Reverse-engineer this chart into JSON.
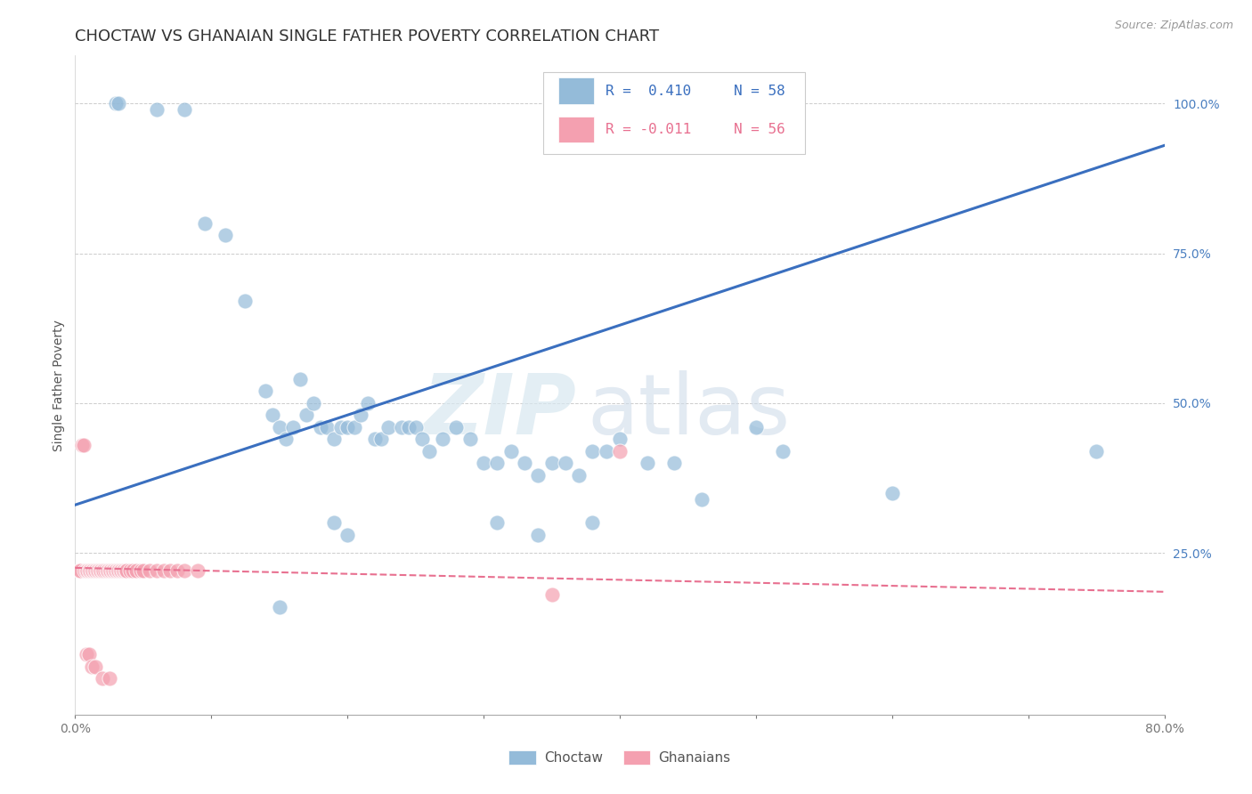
{
  "title": "CHOCTAW VS GHANAIAN SINGLE FATHER POVERTY CORRELATION CHART",
  "source": "Source: ZipAtlas.com",
  "ylabel": "Single Father Poverty",
  "xlim": [
    0.0,
    0.8
  ],
  "ylim": [
    -0.02,
    1.08
  ],
  "xticks": [
    0.0,
    0.1,
    0.2,
    0.3,
    0.4,
    0.5,
    0.6,
    0.7,
    0.8
  ],
  "xticklabels": [
    "0.0%",
    "",
    "",
    "",
    "",
    "",
    "",
    "",
    "80.0%"
  ],
  "yticks_right": [
    0.0,
    0.25,
    0.5,
    0.75,
    1.0
  ],
  "yticklabels_right": [
    "",
    "25.0%",
    "50.0%",
    "75.0%",
    "100.0%"
  ],
  "legend_blue_R": "R =  0.410",
  "legend_blue_N": "N = 58",
  "legend_pink_R": "R = -0.011",
  "legend_pink_N": "N = 56",
  "watermark_zip": "ZIP",
  "watermark_atlas": "atlas",
  "blue_color": "#94BBD9",
  "pink_color": "#F4A0B0",
  "line_blue": "#3A6FBF",
  "line_pink": "#E87090",
  "choctaw_x": [
    0.03,
    0.032,
    0.06,
    0.08,
    0.095,
    0.11,
    0.125,
    0.14,
    0.145,
    0.15,
    0.155,
    0.16,
    0.165,
    0.17,
    0.175,
    0.18,
    0.185,
    0.19,
    0.195,
    0.2,
    0.205,
    0.21,
    0.215,
    0.22,
    0.225,
    0.23,
    0.24,
    0.245,
    0.25,
    0.255,
    0.26,
    0.27,
    0.28,
    0.29,
    0.3,
    0.31,
    0.32,
    0.33,
    0.34,
    0.35,
    0.36,
    0.37,
    0.38,
    0.39,
    0.4,
    0.42,
    0.44,
    0.46,
    0.5,
    0.52,
    0.6,
    0.75,
    0.19,
    0.2,
    0.31,
    0.34,
    0.38,
    0.15
  ],
  "choctaw_y": [
    1.0,
    1.0,
    0.99,
    0.99,
    0.8,
    0.78,
    0.67,
    0.52,
    0.48,
    0.46,
    0.44,
    0.46,
    0.54,
    0.48,
    0.5,
    0.46,
    0.46,
    0.44,
    0.46,
    0.46,
    0.46,
    0.48,
    0.5,
    0.44,
    0.44,
    0.46,
    0.46,
    0.46,
    0.46,
    0.44,
    0.42,
    0.44,
    0.46,
    0.44,
    0.4,
    0.4,
    0.42,
    0.4,
    0.38,
    0.4,
    0.4,
    0.38,
    0.42,
    0.42,
    0.44,
    0.4,
    0.4,
    0.34,
    0.46,
    0.42,
    0.35,
    0.42,
    0.3,
    0.28,
    0.3,
    0.28,
    0.3,
    0.16
  ],
  "ghanaian_x": [
    0.003,
    0.004,
    0.005,
    0.006,
    0.007,
    0.008,
    0.009,
    0.01,
    0.011,
    0.012,
    0.013,
    0.014,
    0.015,
    0.016,
    0.017,
    0.018,
    0.019,
    0.02,
    0.021,
    0.022,
    0.023,
    0.024,
    0.025,
    0.026,
    0.027,
    0.028,
    0.029,
    0.03,
    0.031,
    0.032,
    0.033,
    0.034,
    0.035,
    0.036,
    0.037,
    0.038,
    0.04,
    0.042,
    0.045,
    0.048,
    0.05,
    0.055,
    0.06,
    0.065,
    0.07,
    0.075,
    0.08,
    0.09,
    0.35,
    0.4,
    0.008,
    0.01,
    0.012,
    0.015,
    0.02,
    0.025
  ],
  "ghanaian_y": [
    0.22,
    0.22,
    0.43,
    0.43,
    0.22,
    0.22,
    0.22,
    0.22,
    0.22,
    0.22,
    0.22,
    0.22,
    0.22,
    0.22,
    0.22,
    0.22,
    0.22,
    0.22,
    0.22,
    0.22,
    0.22,
    0.22,
    0.22,
    0.22,
    0.22,
    0.22,
    0.22,
    0.22,
    0.22,
    0.22,
    0.22,
    0.22,
    0.22,
    0.22,
    0.22,
    0.22,
    0.22,
    0.22,
    0.22,
    0.22,
    0.22,
    0.22,
    0.22,
    0.22,
    0.22,
    0.22,
    0.22,
    0.22,
    0.18,
    0.42,
    0.08,
    0.08,
    0.06,
    0.06,
    0.04,
    0.04
  ],
  "choctaw_line_x": [
    0.0,
    0.8
  ],
  "choctaw_line_y": [
    0.33,
    0.93
  ],
  "ghanaian_line_x": [
    0.0,
    0.8
  ],
  "ghanaian_line_y": [
    0.225,
    0.185
  ],
  "background_color": "#FFFFFF",
  "grid_color": "#CCCCCC",
  "title_fontsize": 13,
  "label_fontsize": 10,
  "tick_fontsize": 10,
  "right_tick_color": "#4A7FC0"
}
